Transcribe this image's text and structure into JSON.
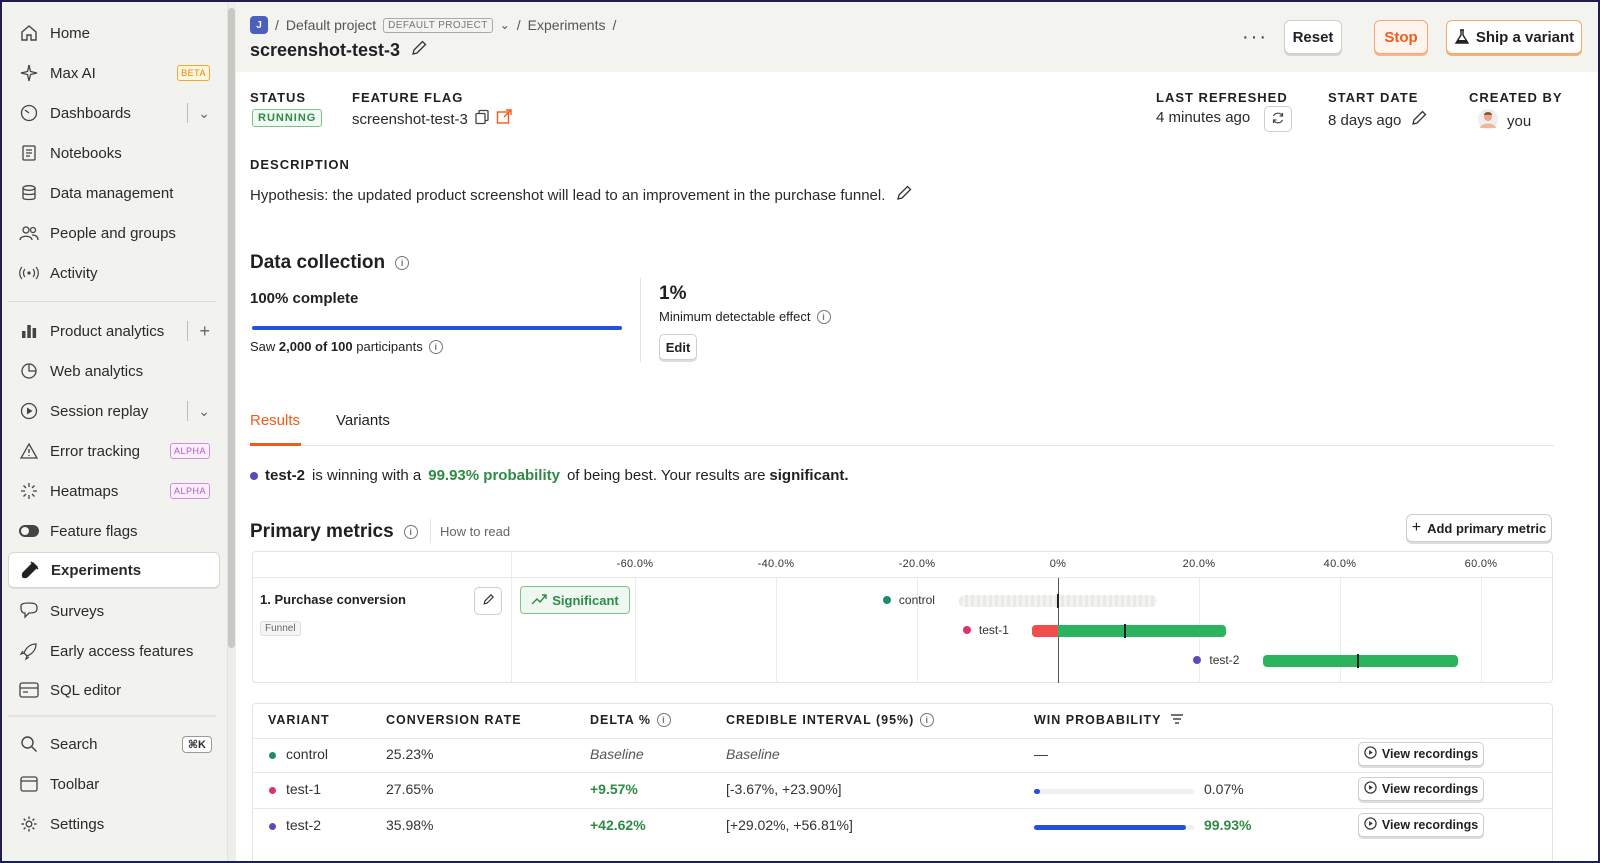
{
  "sidebar": {
    "items": [
      {
        "label": "Home",
        "icon": "home-icon"
      },
      {
        "label": "Max AI",
        "icon": "sparkle-icon",
        "badge": "BETA"
      },
      {
        "label": "Dashboards",
        "icon": "dashboard-icon"
      },
      {
        "label": "Notebooks",
        "icon": "notebook-icon"
      },
      {
        "label": "Data management",
        "icon": "database-icon"
      },
      {
        "label": "People and groups",
        "icon": "people-icon"
      },
      {
        "label": "Activity",
        "icon": "activity-icon"
      },
      {
        "label": "Product analytics",
        "icon": "bar-chart-icon"
      },
      {
        "label": "Web analytics",
        "icon": "pie-chart-icon"
      },
      {
        "label": "Session replay",
        "icon": "play-icon"
      },
      {
        "label": "Error tracking",
        "icon": "warning-icon",
        "badge": "ALPHA"
      },
      {
        "label": "Heatmaps",
        "icon": "heatmap-icon",
        "badge": "ALPHA"
      },
      {
        "label": "Feature flags",
        "icon": "toggle-icon"
      },
      {
        "label": "Experiments",
        "icon": "flask-icon"
      },
      {
        "label": "Surveys",
        "icon": "chat-icon"
      },
      {
        "label": "Early access features",
        "icon": "rocket-icon"
      },
      {
        "label": "SQL editor",
        "icon": "sql-icon"
      }
    ],
    "bottom": [
      {
        "label": "Search",
        "icon": "search-icon",
        "shortcut": "⌘K"
      },
      {
        "label": "Toolbar",
        "icon": "toolbar-icon"
      },
      {
        "label": "Settings",
        "icon": "gear-icon"
      }
    ]
  },
  "header": {
    "project_initial": "J",
    "project_name": "Default project",
    "project_tag": "DEFAULT PROJECT",
    "breadcrumb_section": "Experiments",
    "title": "screenshot-test-3",
    "more": "···",
    "reset_label": "Reset",
    "stop_label": "Stop",
    "ship_label": "Ship a variant"
  },
  "info": {
    "status_label": "STATUS",
    "status_value": "RUNNING",
    "flag_label": "FEATURE FLAG",
    "flag_value": "screenshot-test-3",
    "refreshed_label": "LAST REFRESHED",
    "refreshed_value": "4 minutes ago",
    "start_label": "START DATE",
    "start_value": "8 days ago",
    "created_label": "CREATED BY",
    "created_value": "you",
    "description_label": "DESCRIPTION",
    "description": "Hypothesis: the updated product screenshot will lead to an improvement in the purchase funnel."
  },
  "data_collection": {
    "title": "Data collection",
    "complete": "100% complete",
    "progress": 1.0,
    "saw_prefix": "Saw ",
    "saw_bold": "2,000 of 100",
    "saw_suffix": " participants",
    "mde_value": "1%",
    "mde_label": "Minimum detectable effect",
    "edit_label": "Edit"
  },
  "tabs": [
    "Results",
    "Variants"
  ],
  "summary": {
    "variant": "test-2",
    "pre": "is winning with a",
    "prob": "99.93% probability",
    "mid": "of being best. Your results are",
    "sig": "significant."
  },
  "primary_metrics": {
    "title": "Primary metrics",
    "how_to_read": "How to read",
    "add_label": "Add primary metric",
    "metric_name": "1. Purchase conversion",
    "metric_type": "Funnel",
    "significant_label": "Significant",
    "ticks": [
      "-60.0%",
      "-40.0%",
      "-20.0%",
      "0%",
      "20.0%",
      "40.0%",
      "60.0%"
    ]
  },
  "chart_data": {
    "type": "interval",
    "x_ticks": [
      -60,
      -40,
      -20,
      0,
      20,
      40,
      60
    ],
    "x_unit": "%",
    "series": [
      {
        "name": "control",
        "low": -14,
        "high": 14,
        "mid": 0,
        "color": "#1f8a6e"
      },
      {
        "name": "test-1",
        "low": -3.67,
        "high": 23.9,
        "mid": 9.57,
        "color": "#e1306c"
      },
      {
        "name": "test-2",
        "low": 29.02,
        "high": 56.81,
        "mid": 42.62,
        "color": "#5b4ab8"
      }
    ]
  },
  "results_table": {
    "headers": [
      "VARIANT",
      "CONVERSION RATE",
      "DELTA %",
      "CREDIBLE INTERVAL (95%)",
      "WIN PROBABILITY"
    ],
    "rows": [
      {
        "variant": "control",
        "rate": "25.23%",
        "delta": "Baseline",
        "interval": "Baseline",
        "win": "—",
        "win_value": 0,
        "color": "#1f8a6e"
      },
      {
        "variant": "test-1",
        "rate": "27.65%",
        "delta": "+9.57%",
        "interval": "[-3.67%, +23.90%]",
        "win": "0.07%",
        "win_value": 0.0007,
        "color": "#e1306c"
      },
      {
        "variant": "test-2",
        "rate": "35.98%",
        "delta": "+42.62%",
        "interval": "[+29.02%, +56.81%]",
        "win": "99.93%",
        "win_value": 0.9993,
        "color": "#5b4ab8"
      }
    ],
    "view_recordings": "View recordings"
  },
  "colors": {
    "accent": "#f25a1b",
    "positive": "#2f8a45",
    "bar_green": "#2bb35f",
    "bar_red": "#f24d4d",
    "progress_blue": "#2251e0"
  }
}
